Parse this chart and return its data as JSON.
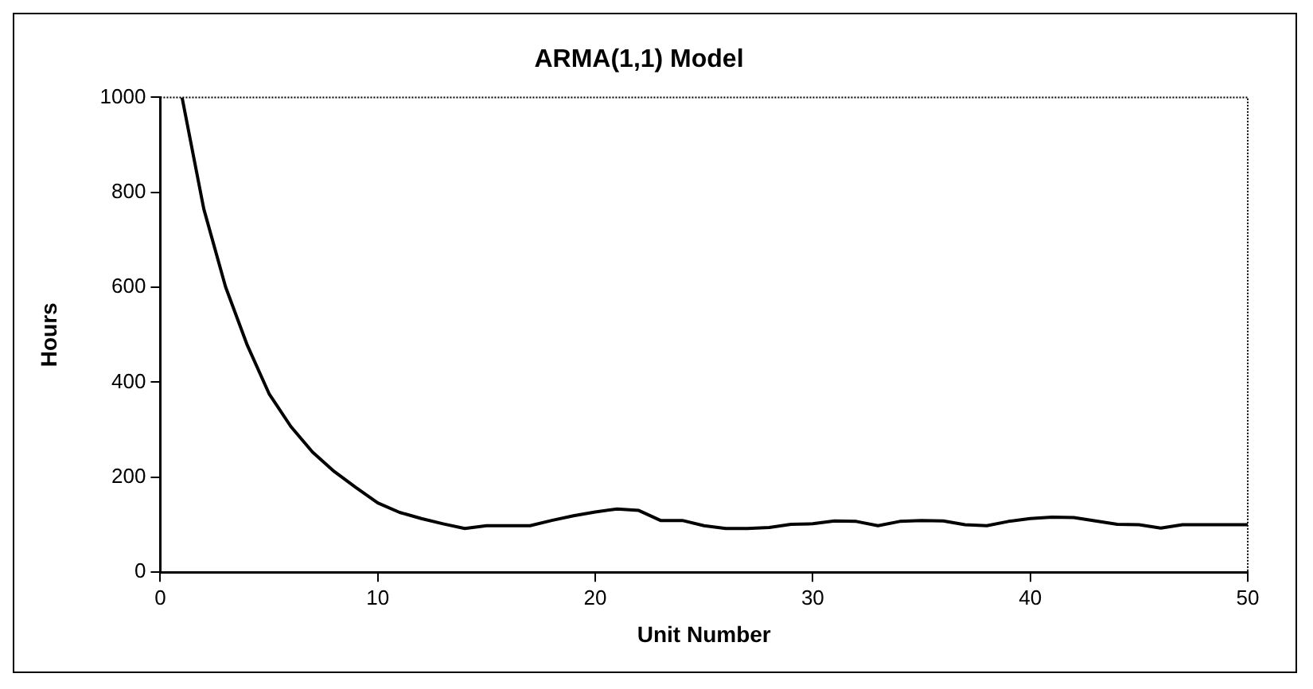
{
  "chart_data": {
    "type": "line",
    "title": "ARMA(1,1) Model",
    "xlabel": "Unit Number",
    "ylabel": "Hours",
    "x": [
      1,
      2,
      3,
      4,
      5,
      6,
      7,
      8,
      9,
      10,
      11,
      12,
      13,
      14,
      15,
      16,
      17,
      18,
      19,
      20,
      21,
      22,
      23,
      24,
      25,
      26,
      27,
      28,
      29,
      30,
      31,
      32,
      33,
      34,
      35,
      36,
      37,
      38,
      39,
      40,
      41,
      42,
      43,
      44,
      45,
      46,
      47,
      48,
      49,
      50
    ],
    "series": [
      {
        "color": "#000000",
        "values": [
          1000,
          765,
          601,
          478,
          376,
          307,
          253,
          212,
          178,
          146,
          126,
          113,
          102,
          92,
          98,
          98,
          98,
          109,
          119,
          127,
          133,
          130,
          109,
          109,
          98,
          92,
          92,
          94,
          101,
          102,
          108,
          107,
          98,
          107,
          109,
          108,
          100,
          98,
          107,
          113,
          116,
          115,
          108,
          101,
          100,
          93,
          100,
          100,
          100,
          100
        ]
      }
    ],
    "xlim": [
      0,
      50
    ],
    "xticks": [
      0,
      10,
      20,
      30,
      40,
      50
    ],
    "ylim": [
      0,
      1000
    ],
    "yticks": [
      0,
      200,
      400,
      600,
      800,
      1000
    ],
    "grid": false,
    "legend": false,
    "marker": "none",
    "line_style": "solid"
  }
}
